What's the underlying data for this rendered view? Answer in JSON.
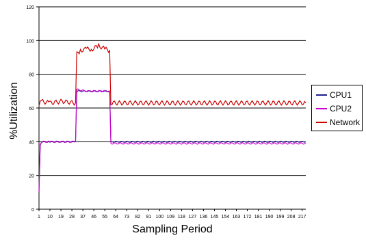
{
  "chart_data": {
    "type": "line",
    "title": "",
    "xlabel": "Sampling Period",
    "ylabel": "%Utilization",
    "ylim": [
      0,
      120
    ],
    "yticks": [
      "0",
      "20",
      "40",
      "60",
      "80",
      "100",
      "120"
    ],
    "xlim": [
      1,
      220
    ],
    "xticks": [
      "1",
      "10",
      "19",
      "28",
      "37",
      "46",
      "55",
      "64",
      "73",
      "82",
      "91",
      "100",
      "109",
      "118",
      "127",
      "136",
      "145",
      "154",
      "163",
      "172",
      "181",
      "190",
      "199",
      "208",
      "217"
    ],
    "grid": {
      "horizontal": true,
      "vertical": false
    },
    "legend": "right",
    "series": [
      {
        "name": "CPU1",
        "color": "#1f1f8f",
        "points": [
          [
            1,
            10
          ],
          [
            2,
            38
          ],
          [
            3,
            40
          ],
          [
            10,
            40
          ],
          [
            20,
            40
          ],
          [
            30,
            40
          ],
          [
            31,
            40
          ],
          [
            32,
            70
          ],
          [
            40,
            70
          ],
          [
            50,
            70
          ],
          [
            59,
            70
          ],
          [
            60,
            40
          ],
          [
            70,
            40
          ],
          [
            100,
            40
          ],
          [
            130,
            40
          ],
          [
            160,
            40
          ],
          [
            190,
            40
          ],
          [
            220,
            40
          ]
        ]
      },
      {
        "name": "CPU2",
        "color": "#cc00cc",
        "points": [
          [
            1,
            10
          ],
          [
            2,
            38
          ],
          [
            3,
            40
          ],
          [
            10,
            40
          ],
          [
            20,
            40
          ],
          [
            30,
            40
          ],
          [
            31,
            40
          ],
          [
            32,
            71
          ],
          [
            40,
            70
          ],
          [
            50,
            70
          ],
          [
            59,
            70
          ],
          [
            60,
            39
          ],
          [
            70,
            39
          ],
          [
            100,
            39
          ],
          [
            130,
            39
          ],
          [
            160,
            39
          ],
          [
            190,
            39
          ],
          [
            220,
            39
          ]
        ]
      },
      {
        "name": "Network",
        "color": "#cc0000",
        "points": [
          [
            1,
            62
          ],
          [
            2,
            63
          ],
          [
            3,
            64
          ],
          [
            10,
            63
          ],
          [
            20,
            64
          ],
          [
            30,
            63
          ],
          [
            31,
            63
          ],
          [
            32,
            92
          ],
          [
            35,
            94
          ],
          [
            40,
            95
          ],
          [
            45,
            95
          ],
          [
            50,
            97
          ],
          [
            55,
            95
          ],
          [
            59,
            94
          ],
          [
            60,
            63
          ],
          [
            70,
            63
          ],
          [
            100,
            63
          ],
          [
            130,
            63
          ],
          [
            160,
            63
          ],
          [
            190,
            63
          ],
          [
            220,
            63
          ]
        ]
      }
    ]
  }
}
